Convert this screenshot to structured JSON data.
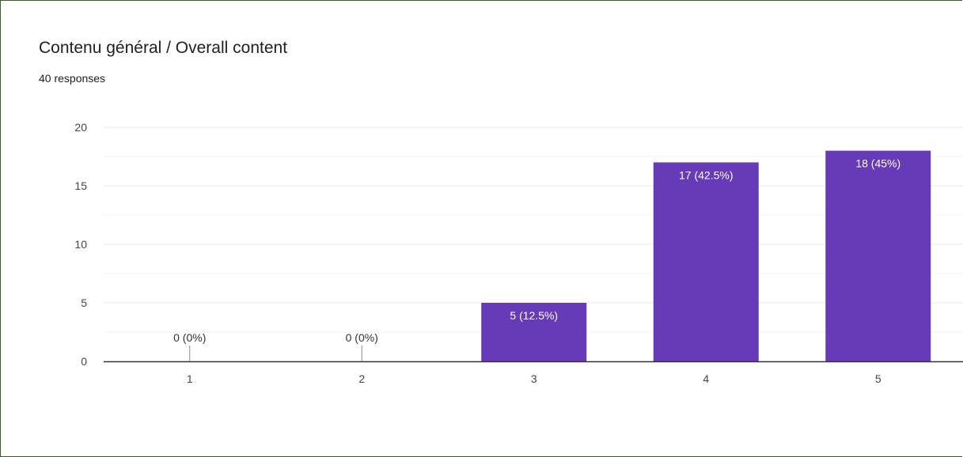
{
  "header": {
    "title": "Contenu général / Overall content",
    "subtitle": "40 responses"
  },
  "colors": {
    "bar": "#673ab7",
    "grid": "#e8e8e8",
    "axis": "#333333",
    "frame": "#3b5a2e"
  },
  "chart_data": {
    "type": "bar",
    "title": "Contenu général / Overall content",
    "subtitle": "40 responses",
    "categories": [
      "1",
      "2",
      "3",
      "4",
      "5"
    ],
    "values": [
      0,
      0,
      5,
      17,
      18
    ],
    "data_labels": [
      "0 (0%)",
      "0 (0%)",
      "5 (12.5%)",
      "17 (42.5%)",
      "18 (45%)"
    ],
    "yticks": [
      0,
      5,
      10,
      15,
      20
    ],
    "ylim": [
      0,
      20
    ],
    "xlabel": "",
    "ylabel": "",
    "grid": true,
    "legend": "none"
  }
}
